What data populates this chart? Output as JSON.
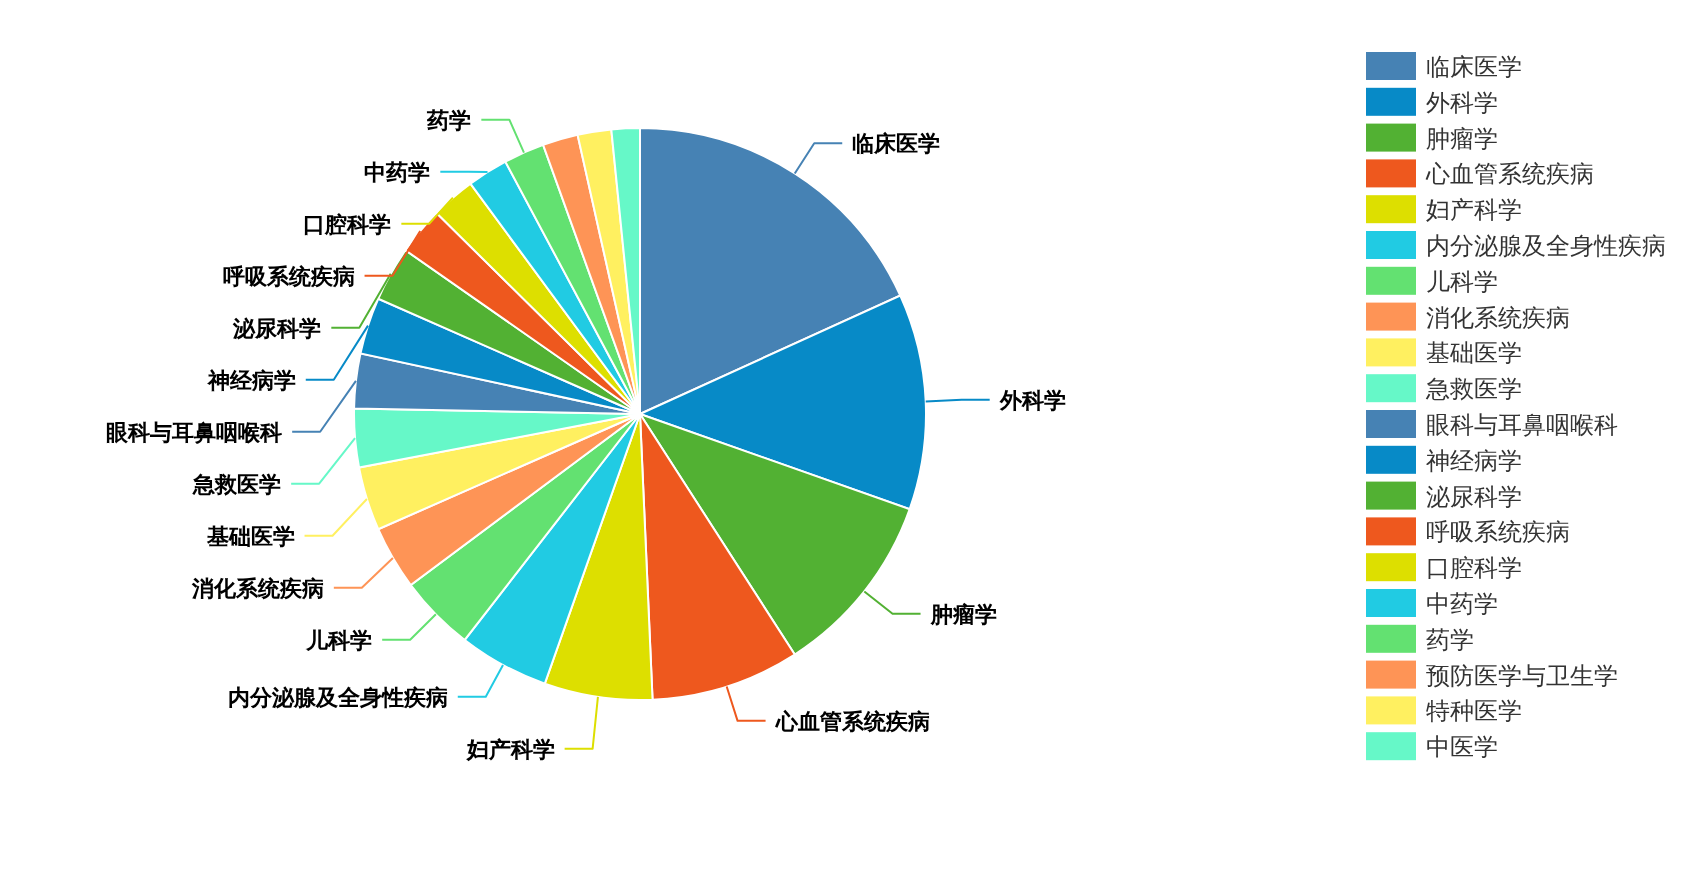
{
  "chart_data": {
    "type": "pie",
    "legend": "right",
    "categories": [
      "临床医学",
      "外科学",
      "肿瘤学",
      "心血管系统疾病",
      "妇产科学",
      "内分泌腺及全身性疾病",
      "儿科学",
      "消化系统疾病",
      "基础医学",
      "急救医学",
      "眼科与耳鼻咽喉科",
      "神经病学",
      "泌尿科学",
      "呼吸系统疾病",
      "口腔科学",
      "中药学",
      "药学",
      "预防医学与卫生学",
      "特种医学",
      "中医学"
    ],
    "values": [
      18.2,
      12.2,
      10.5,
      8.4,
      6.1,
      5.1,
      4.3,
      3.6,
      3.6,
      3.3,
      3.1,
      3.2,
      3.1,
      2.7,
      2.5,
      2.3,
      2.3,
      2.0,
      1.9,
      1.6
    ],
    "colors": [
      "#4682b4",
      "#078ac7",
      "#52b133",
      "#ee581e",
      "#dddf00",
      "#21cbe3",
      "#63e171",
      "#fe9456",
      "#fff060",
      "#66f8c8",
      "#4682b4",
      "#078ac7",
      "#52b133",
      "#ee581e",
      "#dddf00",
      "#21cbe3",
      "#63e171",
      "#fe9456",
      "#fff060",
      "#66f8c8"
    ]
  }
}
